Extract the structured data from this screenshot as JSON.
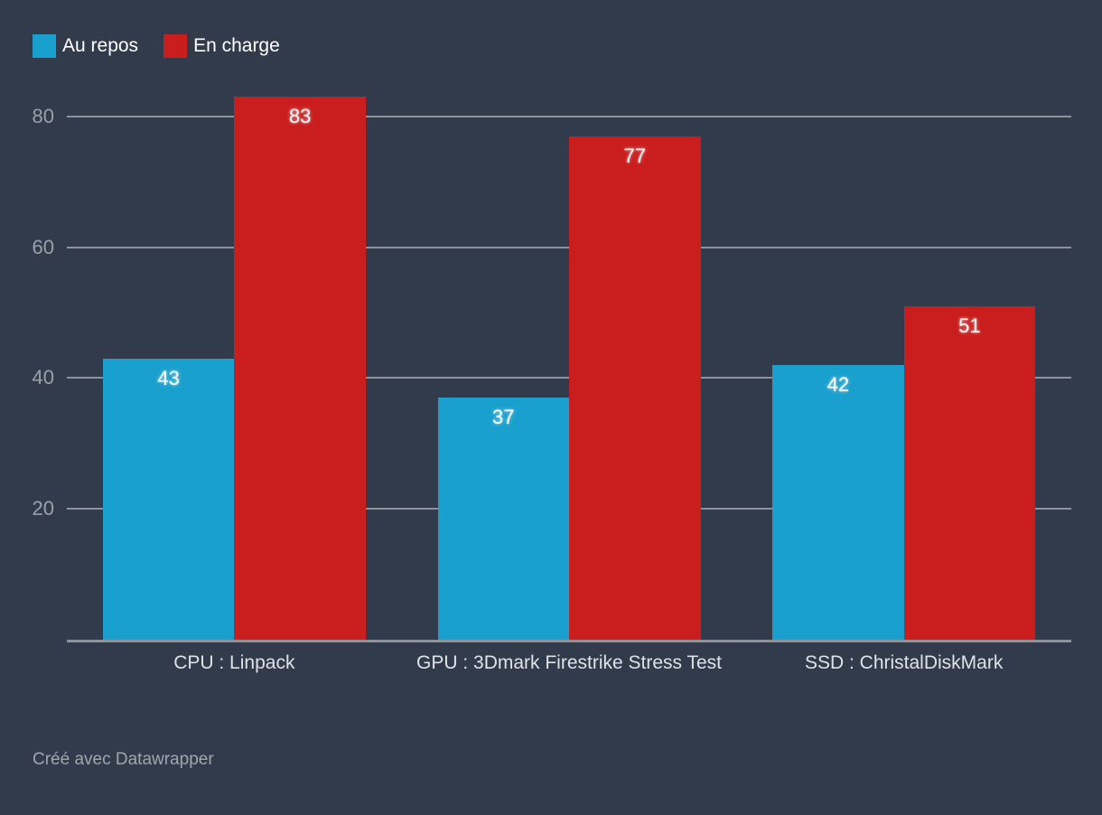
{
  "footer": {
    "credit": "Créé avec Datawrapper"
  },
  "colors": {
    "background": "#323B4B",
    "gridline": "#8E939B",
    "baseline": "#8E939B",
    "tick_label": "#9BA0A8",
    "category_label": "#DFE2E6",
    "value_label": "#FFFFFF",
    "legend_label": "#FFFFFF",
    "series_blue": "#1AA0CE",
    "series_red": "#C91E1D"
  },
  "chart_data": {
    "type": "bar",
    "title": "",
    "xlabel": "",
    "ylabel": "",
    "categories": [
      "CPU : Linpack",
      "GPU : 3Dmark Firestrike Stress Test",
      "SSD : ChristalDiskMark"
    ],
    "series": [
      {
        "name": "Au repos",
        "color": "#1AA0CE",
        "values": [
          43,
          37,
          42
        ]
      },
      {
        "name": "En charge",
        "color": "#C91E1D",
        "values": [
          83,
          77,
          51
        ]
      }
    ],
    "yticks": [
      20,
      40,
      60,
      80
    ],
    "ylim": [
      0,
      84.5
    ],
    "grid": true,
    "legend_position": "top-left",
    "bar_value_labels": true
  }
}
